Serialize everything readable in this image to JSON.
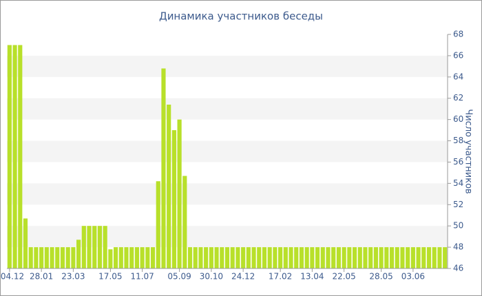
{
  "chart_data": {
    "type": "bar",
    "title": "Динамика участников беседы",
    "y_label": "Число участников",
    "categories": [
      "04.12",
      null,
      null,
      null,
      null,
      null,
      "28.01",
      null,
      null,
      null,
      null,
      null,
      "23.03",
      null,
      null,
      null,
      null,
      null,
      null,
      "17.05",
      null,
      null,
      null,
      null,
      null,
      "11.07",
      null,
      null,
      null,
      null,
      null,
      null,
      "05.09",
      null,
      null,
      null,
      null,
      null,
      "30.10",
      null,
      null,
      null,
      null,
      null,
      "24.12",
      null,
      null,
      null,
      null,
      null,
      null,
      "17.02",
      null,
      null,
      null,
      null,
      null,
      "13.04",
      null,
      null,
      null,
      null,
      null,
      "22.05",
      null,
      null,
      null,
      null,
      null,
      null,
      "28.05",
      null,
      null,
      null,
      null,
      null,
      "03.06",
      null,
      null,
      null,
      null,
      null,
      null
    ],
    "values": [
      67,
      67,
      67,
      50.7,
      48,
      48,
      48,
      48,
      48,
      48,
      48,
      48,
      48,
      48.7,
      50,
      50,
      50,
      50,
      50,
      47.8,
      48,
      48,
      48,
      48,
      48,
      48,
      48,
      48,
      54.2,
      64.8,
      61.4,
      59,
      60,
      54.7,
      48,
      48,
      48,
      48,
      48,
      48,
      48,
      48,
      48,
      48,
      48,
      48,
      48,
      48,
      48,
      48,
      48,
      48,
      48,
      48,
      48,
      48,
      48,
      48,
      48,
      48,
      48,
      48,
      48,
      48,
      48,
      48,
      48,
      48,
      48,
      48,
      48,
      48,
      48,
      48,
      48,
      48,
      48,
      48,
      48,
      48,
      48,
      48,
      48
    ],
    "color": "#b8e02a",
    "ylim": [
      46,
      68
    ],
    "yticks": [
      46,
      48,
      50,
      52,
      54,
      56,
      58,
      60,
      62,
      64,
      66,
      68
    ],
    "grid": "bands",
    "y_axis_side": "right"
  }
}
